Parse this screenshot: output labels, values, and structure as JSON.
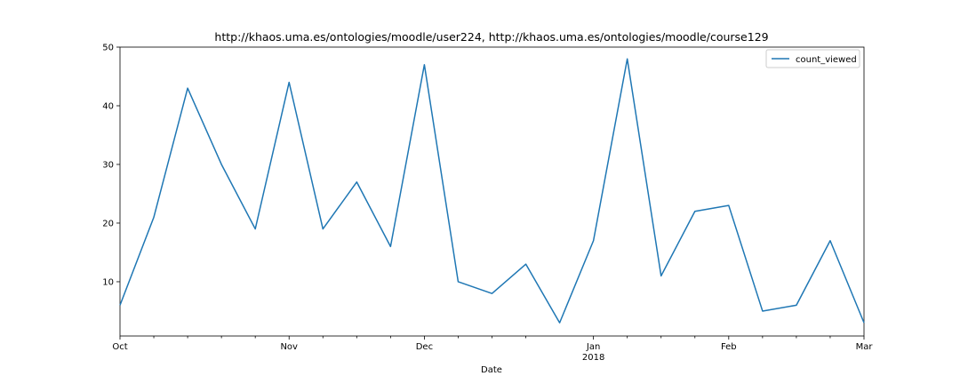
{
  "chart_data": {
    "type": "line",
    "title": "http://khaos.uma.es/ontologies/moodle/user224, http://khaos.uma.es/ontologies/moodle/course129",
    "xlabel": "Date",
    "ylabel": "",
    "series": [
      {
        "name": "count_viewed",
        "color": "#1f77b4",
        "x": [
          "2017-10-01",
          "2017-10-08",
          "2017-10-15",
          "2017-10-22",
          "2017-10-29",
          "2017-11-05",
          "2017-11-12",
          "2017-11-19",
          "2017-11-26",
          "2017-12-03",
          "2017-12-10",
          "2017-12-17",
          "2017-12-24",
          "2017-12-31",
          "2018-01-07",
          "2018-01-14",
          "2018-01-21",
          "2018-01-28",
          "2018-02-04",
          "2018-02-11",
          "2018-02-18",
          "2018-02-25",
          "2018-03-04"
        ],
        "values": [
          6,
          21,
          43,
          30,
          19,
          44,
          19,
          27,
          16,
          47,
          10,
          8,
          13,
          3,
          17,
          48,
          11,
          22,
          23,
          5,
          6,
          17,
          3
        ]
      }
    ],
    "xlim": [
      "2017-10-01",
      "2018-03-04"
    ],
    "ylim": [
      0.75,
      50
    ],
    "yticks": [
      10,
      20,
      30,
      40,
      50
    ],
    "major_xticks": [
      {
        "x": "2017-10-01",
        "label": "Oct",
        "sublabel": ""
      },
      {
        "x": "2017-11-05",
        "label": "Nov",
        "sublabel": ""
      },
      {
        "x": "2017-12-03",
        "label": "Dec",
        "sublabel": ""
      },
      {
        "x": "2018-01-07",
        "label": "Jan",
        "sublabel": "2018"
      },
      {
        "x": "2018-02-04",
        "label": "Feb",
        "sublabel": ""
      },
      {
        "x": "2018-03-04",
        "label": "Mar",
        "sublabel": ""
      }
    ],
    "minor_xticks": [
      "2017-10-08",
      "2017-10-15",
      "2017-10-22",
      "2017-10-29",
      "2017-11-12",
      "2017-11-19",
      "2017-11-26",
      "2017-12-10",
      "2017-12-17",
      "2017-12-24",
      "2018-01-14",
      "2018-01-21",
      "2018-01-28",
      "2018-02-11",
      "2018-02-18",
      "2018-02-25"
    ],
    "grid": false,
    "legend": "top-right"
  }
}
